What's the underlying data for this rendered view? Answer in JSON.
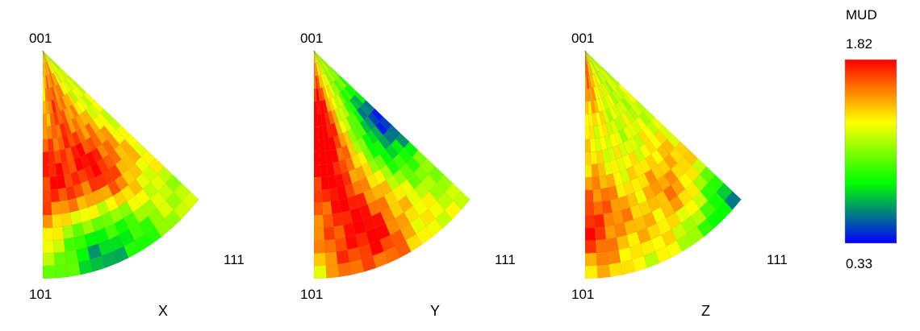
{
  "chart_data": {
    "type": "heatmap",
    "description_type": "inverse pole figures (IPF) heatmap",
    "panels": [
      {
        "axis": "X",
        "corners": [
          "001",
          "101",
          "111"
        ],
        "hotspots": [
          {
            "near": "between 001 and 101, upper",
            "value": 1.6
          },
          {
            "near": "left edge middle",
            "value": 1.75
          },
          {
            "near": "center",
            "value": 1.8
          },
          {
            "near": "lower center",
            "value": 0.6
          }
        ]
      },
      {
        "axis": "Y",
        "corners": [
          "001",
          "101",
          "111"
        ],
        "hotspots": [
          {
            "near": "upper left",
            "value": 1.7
          },
          {
            "near": "center-left",
            "value": 1.75
          },
          {
            "near": "lower center",
            "value": 1.8
          },
          {
            "near": "near 001-111 edge",
            "value": 0.45
          }
        ]
      },
      {
        "axis": "Z",
        "corners": [
          "001",
          "101",
          "111"
        ],
        "hotspots": [
          {
            "near": "near 001",
            "value": 1.6
          },
          {
            "near": "left edge lower",
            "value": 1.75
          },
          {
            "near": "right edge middle",
            "value": 1.8
          },
          {
            "near": "near 111",
            "value": 0.35
          }
        ]
      }
    ],
    "colorbar": {
      "title": "MUD",
      "max": "1.82",
      "min": "0.33",
      "colors": [
        "#0000ff",
        "#00ff00",
        "#ffff00",
        "#ff0000"
      ]
    }
  }
}
